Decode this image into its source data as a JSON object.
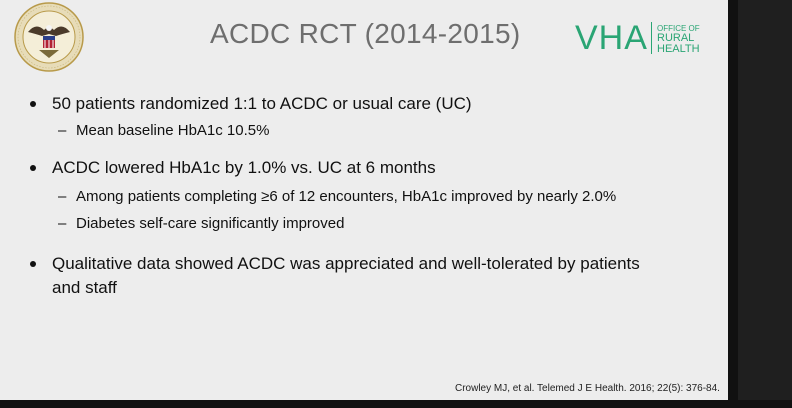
{
  "slide": {
    "title": "ACDC RCT (2014-2015)",
    "logo": {
      "main": "VHA",
      "office_of": "OFFICE OF",
      "rural": "RURAL",
      "health": "HEALTH"
    },
    "bullets": [
      {
        "text": "50 patients randomized 1:1 to ACDC or usual care (UC)",
        "sub": [
          "Mean baseline HbA1c 10.5%"
        ]
      },
      {
        "text": "ACDC lowered HbA1c by 1.0% vs. UC at 6 months",
        "sub": [
          "Among patients completing ≥6 of 12 encounters, HbA1c improved by nearly 2.0%",
          "Diabetes self-care significantly improved"
        ]
      },
      {
        "text_line1": "Qualitative data showed ACDC was appreciated and well-tolerated by patients",
        "text_line2": "and staff"
      }
    ],
    "citation": "Crowley MJ, et al. Telemed J E Health. 2016; 22(5): 376-84.",
    "dash": "–"
  },
  "icons": {
    "seal": "department-of-veterans-affairs-seal-icon"
  },
  "colors": {
    "slide_bg": "#ededed",
    "title": "#6e6e6e",
    "vha_green": "#2aa574",
    "text": "#111111"
  }
}
